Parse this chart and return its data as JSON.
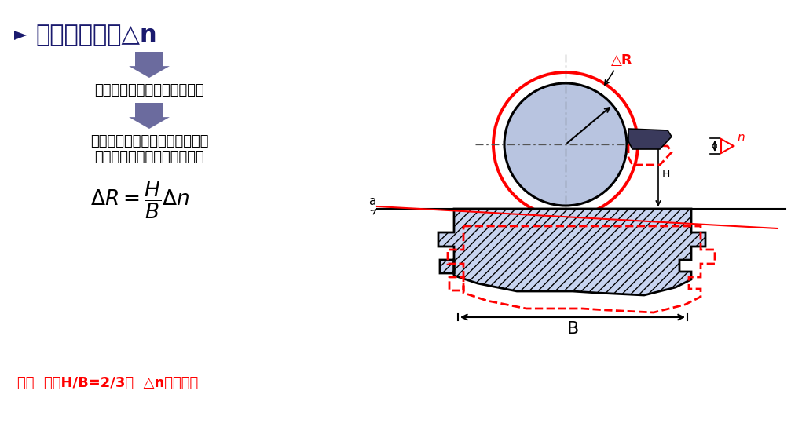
{
  "bg_color": "#ffffff",
  "title_text": "前后导轨扭曲△n",
  "arrow_color": "#6b6b9e",
  "text1": "工作台在运动过程中产生摆动",
  "text2": "刀尖运动轨迹为一条空间曲线，",
  "text3": "产生加工误差（圆柱度误差）",
  "example_text": "例：  车床H/B=2/3，  △n影响很大",
  "red_color": "#ff0000",
  "black_color": "#000000",
  "dark_navy": "#1a1a6e",
  "blue_gray": "#6b6b9e",
  "circle_fill": "#b8c4e0",
  "hatch_fill": "#c8d4f0",
  "dark_gray": "#3a3a5c",
  "dim_color": "#333333"
}
